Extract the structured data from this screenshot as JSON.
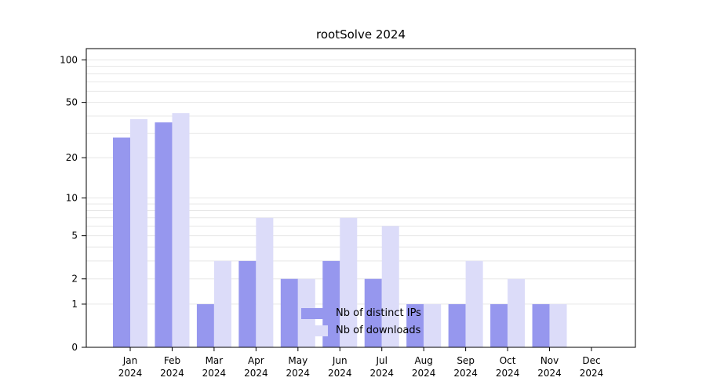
{
  "title": "rootSolve 2024",
  "colors": {
    "ips": "#9697ee",
    "downloads": "#dcdcf9",
    "grid": "#e7e7e7",
    "axis": "#000000",
    "text": "#000000"
  },
  "legend": {
    "items": [
      {
        "label": "Nb of distinct IPs",
        "color_key": "ips"
      },
      {
        "label": "Nb of downloads",
        "color_key": "downloads"
      }
    ]
  },
  "chart_data": {
    "type": "bar",
    "scale": "log1p",
    "title": "rootSolve 2024",
    "xlabel": "",
    "ylabel": "",
    "year": "2024",
    "categories": [
      "Jan",
      "Feb",
      "Mar",
      "Apr",
      "May",
      "Jun",
      "Jul",
      "Aug",
      "Sep",
      "Oct",
      "Nov",
      "Dec"
    ],
    "series": [
      {
        "name": "Nb of distinct IPs",
        "values": [
          28,
          36,
          1,
          3,
          2,
          3,
          2,
          1,
          1,
          1,
          1,
          0
        ]
      },
      {
        "name": "Nb of downloads",
        "values": [
          38,
          42,
          3,
          7,
          2,
          7,
          6,
          1,
          3,
          2,
          1,
          0
        ]
      }
    ],
    "yticks": [
      0,
      1,
      2,
      5,
      10,
      20,
      50,
      100
    ],
    "grid_values": [
      1,
      2,
      3,
      4,
      5,
      6,
      7,
      8,
      9,
      10,
      20,
      30,
      40,
      50,
      60,
      70,
      80,
      90,
      100
    ],
    "ylim": [
      0,
      120
    ],
    "legend_position": "bottom-center",
    "grid": true
  }
}
